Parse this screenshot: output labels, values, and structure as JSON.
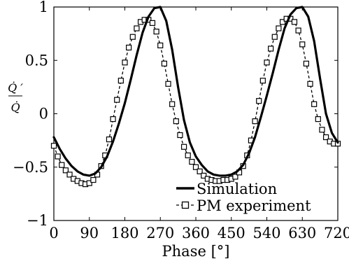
{
  "chart_data": {
    "type": "line",
    "title": "",
    "xlabel": "Phase [°]",
    "ylabel": {
      "numerator": "Q̇ ′",
      "denominator": "Q̇"
    },
    "xlim": [
      0,
      720
    ],
    "ylim": [
      -1,
      1
    ],
    "xticks": [
      "0",
      "90",
      "180",
      "270",
      "360",
      "450",
      "540",
      "630",
      "720"
    ],
    "yticks": [
      "−1",
      "−0.5",
      "0",
      "0.5",
      "1"
    ],
    "xtick_values": [
      0,
      90,
      180,
      270,
      360,
      450,
      540,
      630,
      720
    ],
    "ytick_values": [
      -1,
      -0.5,
      0,
      0.5,
      1
    ],
    "grid": false,
    "legend_position": "bottom-right",
    "series": [
      {
        "name": "Simulation",
        "style": "solid-thick",
        "color": "#000000",
        "x": [
          0,
          15,
          30,
          45,
          60,
          75,
          90,
          105,
          120,
          135,
          150,
          165,
          180,
          195,
          210,
          225,
          240,
          255,
          270,
          285,
          300,
          315,
          330,
          345,
          360,
          375,
          390,
          405,
          420,
          435,
          450,
          465,
          480,
          495,
          510,
          525,
          540,
          555,
          570,
          585,
          600,
          615,
          630,
          645,
          660,
          675,
          690,
          705,
          720
        ],
        "y": [
          -0.22,
          -0.33,
          -0.42,
          -0.49,
          -0.54,
          -0.57,
          -0.58,
          -0.56,
          -0.5,
          -0.4,
          -0.26,
          -0.09,
          0.1,
          0.32,
          0.55,
          0.76,
          0.91,
          0.99,
          1.0,
          0.87,
          0.6,
          0.25,
          -0.06,
          -0.27,
          -0.4,
          -0.48,
          -0.54,
          -0.57,
          -0.58,
          -0.58,
          -0.57,
          -0.54,
          -0.48,
          -0.37,
          -0.22,
          -0.03,
          0.17,
          0.38,
          0.6,
          0.8,
          0.93,
          0.99,
          1.0,
          0.91,
          0.68,
          0.33,
          0.0,
          -0.18,
          -0.27
        ]
      },
      {
        "name": "PM experiment",
        "style": "dashed-square-markers",
        "color": "#000000",
        "x": [
          0,
          10,
          20,
          30,
          40,
          50,
          60,
          70,
          80,
          90,
          100,
          110,
          120,
          130,
          140,
          150,
          160,
          170,
          180,
          190,
          200,
          210,
          220,
          230,
          240,
          250,
          260,
          270,
          280,
          290,
          300,
          310,
          320,
          330,
          340,
          350,
          360,
          370,
          380,
          390,
          400,
          410,
          420,
          430,
          440,
          450,
          460,
          470,
          480,
          490,
          500,
          510,
          520,
          530,
          540,
          550,
          560,
          570,
          580,
          590,
          600,
          610,
          620,
          630,
          640,
          650,
          660,
          670,
          680,
          690,
          700,
          710,
          720
        ],
        "y": [
          -0.3,
          -0.4,
          -0.48,
          -0.53,
          -0.57,
          -0.61,
          -0.63,
          -0.65,
          -0.66,
          -0.65,
          -0.62,
          -0.57,
          -0.49,
          -0.39,
          -0.24,
          -0.05,
          0.13,
          0.31,
          0.48,
          0.62,
          0.72,
          0.8,
          0.86,
          0.88,
          0.88,
          0.85,
          0.77,
          0.64,
          0.47,
          0.28,
          0.09,
          -0.07,
          -0.2,
          -0.31,
          -0.39,
          -0.45,
          -0.5,
          -0.54,
          -0.58,
          -0.61,
          -0.62,
          -0.63,
          -0.63,
          -0.62,
          -0.62,
          -0.61,
          -0.59,
          -0.55,
          -0.49,
          -0.39,
          -0.25,
          -0.07,
          0.12,
          0.31,
          0.48,
          0.61,
          0.72,
          0.8,
          0.86,
          0.89,
          0.89,
          0.86,
          0.78,
          0.65,
          0.47,
          0.28,
          0.09,
          -0.05,
          -0.15,
          -0.22,
          -0.26,
          -0.28,
          -0.28
        ]
      }
    ]
  }
}
